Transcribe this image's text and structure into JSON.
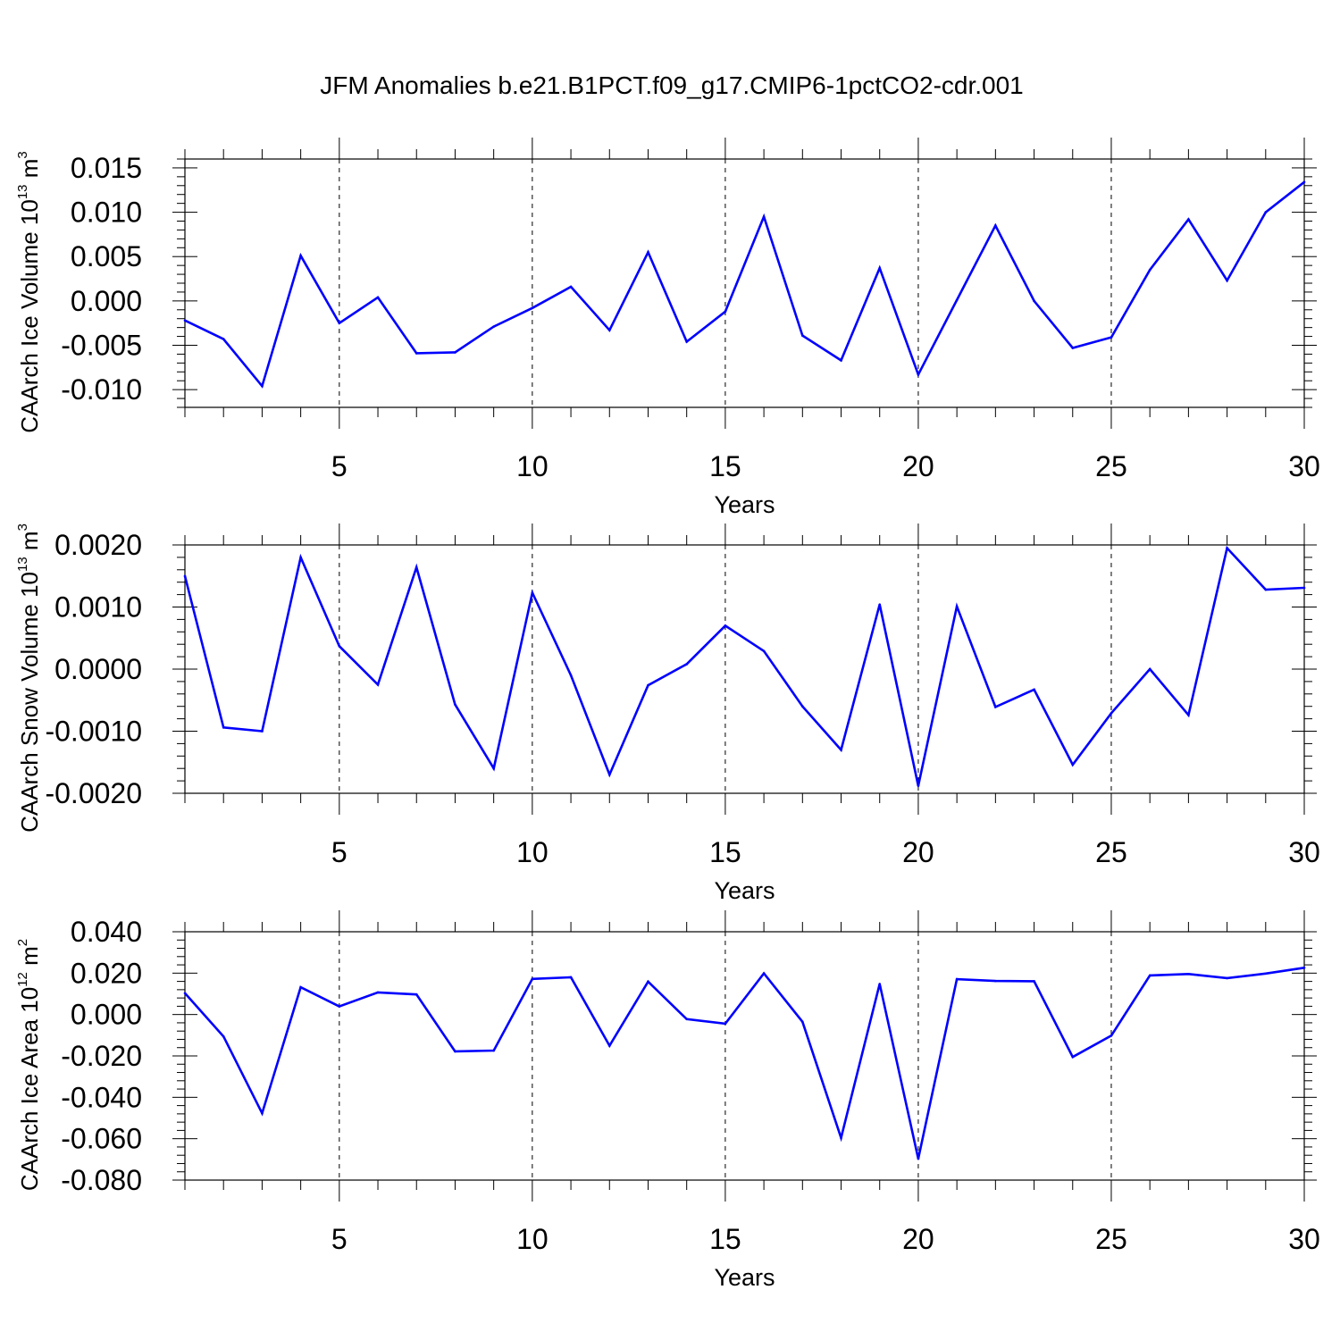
{
  "title": "JFM Anomalies b.e21.B1PCT.f09_g17.CMIP6-1pctCO2-cdr.001",
  "chart_data": [
    {
      "type": "line",
      "xlabel": "Years",
      "ylabel": "CAArch Ice Volume 10",
      "ylabel_exp": "13",
      "ylabel_unit": " m",
      "ylabel_unit_exp": "3",
      "xlim": [
        1,
        30
      ],
      "ylim": [
        -0.012,
        0.016
      ],
      "xticks": [
        5,
        10,
        15,
        20,
        25,
        30
      ],
      "yticks": [
        -0.01,
        -0.005,
        0.0,
        0.005,
        0.01,
        0.015
      ],
      "ytick_labels": [
        "-0.010",
        "-0.005",
        "0.000",
        "0.005",
        "0.010",
        "0.015"
      ],
      "grid": "dashed vertical at x ticks",
      "color": "#0000ff",
      "x": [
        1,
        2,
        3,
        4,
        5,
        6,
        7,
        8,
        9,
        10,
        11,
        12,
        13,
        14,
        15,
        16,
        17,
        18,
        19,
        20,
        21,
        22,
        23,
        24,
        25,
        26,
        27,
        28,
        29,
        30
      ],
      "values": [
        -0.0022,
        -0.0043,
        -0.0096,
        0.0051,
        -0.0025,
        0.0004,
        -0.0059,
        -0.0058,
        -0.0029,
        -0.0008,
        0.0016,
        -0.0033,
        0.0055,
        -0.0046,
        -0.0012,
        0.0095,
        -0.0039,
        -0.0067,
        0.0037,
        -0.0083,
        0.0001,
        0.0085,
        0.0,
        -0.0053,
        -0.0041,
        0.0035,
        0.0092,
        0.0023,
        0.01,
        0.0134
      ]
    },
    {
      "type": "line",
      "xlabel": "Years",
      "ylabel": "CAArch Snow Volume 10",
      "ylabel_exp": "13",
      "ylabel_unit": " m",
      "ylabel_unit_exp": "3",
      "xlim": [
        1,
        30
      ],
      "ylim": [
        -0.002,
        0.002
      ],
      "xticks": [
        5,
        10,
        15,
        20,
        25,
        30
      ],
      "yticks": [
        -0.002,
        -0.001,
        0.0,
        0.001,
        0.002
      ],
      "ytick_labels": [
        "-0.0020",
        "-0.0010",
        "0.0000",
        "0.0010",
        "0.0020"
      ],
      "grid": "dashed vertical at x ticks",
      "color": "#0000ff",
      "x": [
        1,
        2,
        3,
        4,
        5,
        6,
        7,
        8,
        9,
        10,
        11,
        12,
        13,
        14,
        15,
        16,
        17,
        18,
        19,
        20,
        21,
        22,
        23,
        24,
        25,
        26,
        27,
        28,
        29,
        30
      ],
      "values": [
        0.0015,
        -0.00094,
        -0.001,
        0.0018,
        0.00037,
        -0.00025,
        0.00164,
        -0.00057,
        -0.0016,
        0.00123,
        -0.0001,
        -0.0017,
        -0.00026,
        8e-05,
        0.0007,
        0.00029,
        -0.0006,
        -0.0013,
        0.00104,
        -0.00188,
        0.00101,
        -0.00061,
        -0.00033,
        -0.00154,
        -0.00071,
        0.0,
        -0.00074,
        0.00195,
        0.00128,
        0.00131
      ]
    },
    {
      "type": "line",
      "xlabel": "Years",
      "ylabel": "CAArch Ice Area 10",
      "ylabel_exp": "12",
      "ylabel_unit": " m",
      "ylabel_unit_exp": "2",
      "xlim": [
        1,
        30
      ],
      "ylim": [
        -0.08,
        0.04
      ],
      "xticks": [
        5,
        10,
        15,
        20,
        25,
        30
      ],
      "yticks": [
        -0.08,
        -0.06,
        -0.04,
        -0.02,
        0.0,
        0.02,
        0.04
      ],
      "ytick_labels": [
        "-0.080",
        "-0.060",
        "-0.040",
        "-0.020",
        "0.000",
        "0.020",
        "0.040"
      ],
      "grid": "dashed vertical at x ticks",
      "color": "#0000ff",
      "x": [
        1,
        2,
        3,
        4,
        5,
        6,
        7,
        8,
        9,
        10,
        11,
        12,
        13,
        14,
        15,
        16,
        17,
        18,
        19,
        20,
        21,
        22,
        23,
        24,
        25,
        26,
        27,
        28,
        29,
        30
      ],
      "values": [
        0.0103,
        -0.0106,
        -0.0477,
        0.0132,
        0.0039,
        0.0107,
        0.0097,
        -0.0178,
        -0.0174,
        0.0172,
        0.018,
        -0.0151,
        0.0159,
        -0.0022,
        -0.0044,
        0.0199,
        -0.0035,
        -0.0596,
        0.0148,
        -0.0697,
        0.0171,
        0.0162,
        0.0161,
        -0.0205,
        -0.0102,
        0.0189,
        0.0196,
        0.0176,
        0.0198,
        0.0226
      ]
    }
  ]
}
